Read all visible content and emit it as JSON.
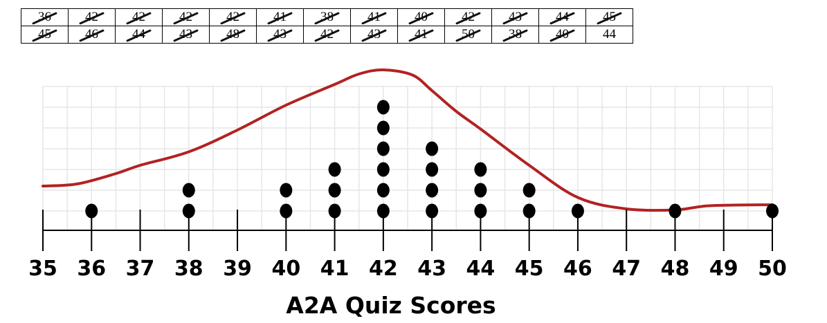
{
  "table": {
    "rows": [
      [
        {
          "v": "36",
          "x": true
        },
        {
          "v": "42",
          "x": true
        },
        {
          "v": "42",
          "x": true
        },
        {
          "v": "42",
          "x": true
        },
        {
          "v": "42",
          "x": true
        },
        {
          "v": "41",
          "x": true
        },
        {
          "v": "38",
          "x": true
        },
        {
          "v": "41",
          "x": true
        },
        {
          "v": "40",
          "x": true
        },
        {
          "v": "42",
          "x": true
        },
        {
          "v": "43",
          "x": true
        },
        {
          "v": "44",
          "x": true
        },
        {
          "v": "45",
          "x": true
        }
      ],
      [
        {
          "v": "45",
          "x": true
        },
        {
          "v": "46",
          "x": true
        },
        {
          "v": "44",
          "x": true
        },
        {
          "v": "43",
          "x": true
        },
        {
          "v": "48",
          "x": true
        },
        {
          "v": "43",
          "x": true
        },
        {
          "v": "42",
          "x": true
        },
        {
          "v": "43",
          "x": true
        },
        {
          "v": "41",
          "x": true
        },
        {
          "v": "50",
          "x": true
        },
        {
          "v": "38",
          "x": true
        },
        {
          "v": "40",
          "x": true
        },
        {
          "v": "44",
          "x": false
        }
      ]
    ]
  },
  "chart_data": {
    "type": "scatter",
    "subtype": "dot-plot",
    "title": "A2A Quiz Scores",
    "xlabel": "",
    "ylabel": "",
    "xlim": [
      35,
      50
    ],
    "x_ticks": [
      "35",
      "36",
      "37",
      "38",
      "39",
      "40",
      "41",
      "42",
      "43",
      "44",
      "45",
      "46",
      "47",
      "48",
      "49",
      "50"
    ],
    "grid": true,
    "dot_color": "#000000",
    "curve_color": "#b22222",
    "dots": [
      {
        "x": 36,
        "count": 1
      },
      {
        "x": 38,
        "count": 2
      },
      {
        "x": 40,
        "count": 2
      },
      {
        "x": 41,
        "count": 3
      },
      {
        "x": 42,
        "count": 6
      },
      {
        "x": 43,
        "count": 4
      },
      {
        "x": 44,
        "count": 3
      },
      {
        "x": 45,
        "count": 2
      },
      {
        "x": 46,
        "count": 1
      },
      {
        "x": 48,
        "count": 1
      },
      {
        "x": 50,
        "count": 1
      }
    ],
    "curve": {
      "x": [
        35,
        35.7,
        36.5,
        37,
        38,
        39,
        40,
        41,
        41.5,
        42,
        42.6,
        43,
        43.5,
        44,
        45,
        46,
        47,
        48,
        48.7,
        50
      ],
      "y": [
        1.2,
        1.3,
        1.8,
        2.2,
        2.85,
        3.9,
        5.1,
        6.1,
        6.6,
        6.8,
        6.55,
        5.8,
        4.8,
        3.95,
        2.2,
        0.65,
        0.1,
        0.05,
        0.25,
        0.3
      ]
    }
  }
}
